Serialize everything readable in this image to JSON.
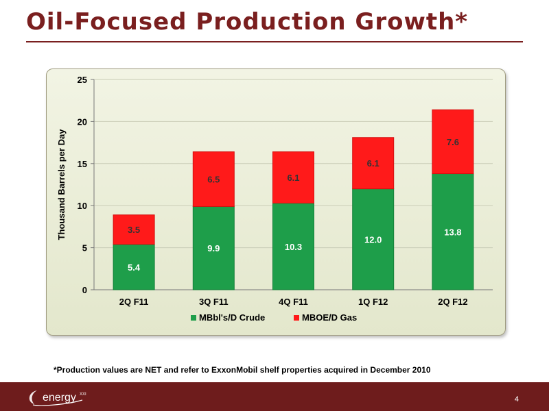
{
  "slide": {
    "title": "Oil-Focused Production Growth*",
    "footnote": "*Production values are NET and refer to ExxonMobil shelf properties acquired in December 2010",
    "page_number": "4",
    "logo_text": "energy",
    "logo_superscript": "XXI"
  },
  "colors": {
    "title": "#7a1f1f",
    "crude": "#1e9e4a",
    "gas": "#ff1a1a",
    "footer": "#6e1c1c"
  },
  "chart_data": {
    "type": "bar",
    "stacked": true,
    "categories": [
      "2Q F11",
      "3Q F11",
      "4Q F11",
      "1Q F12",
      "2Q F12"
    ],
    "series": [
      {
        "name": "MBbl's/D Crude",
        "values": [
          5.4,
          9.9,
          10.3,
          12.0,
          13.8
        ],
        "labels": [
          "5.4",
          "9.9",
          "10.3",
          "12.0",
          "13.8"
        ]
      },
      {
        "name": "MBOE/D Gas",
        "values": [
          3.5,
          6.5,
          6.1,
          6.1,
          7.6
        ],
        "labels": [
          "3.5",
          "6.5",
          "6.1",
          "6.1",
          "7.6"
        ]
      }
    ],
    "ylabel": "Thousand Barrels per Day",
    "ylim": [
      0,
      25
    ],
    "yticks": [
      "0",
      "5",
      "10",
      "15",
      "20",
      "25"
    ],
    "ytick_values": [
      0,
      5,
      10,
      15,
      20,
      25
    ],
    "grid": true,
    "legend": "bottom"
  }
}
